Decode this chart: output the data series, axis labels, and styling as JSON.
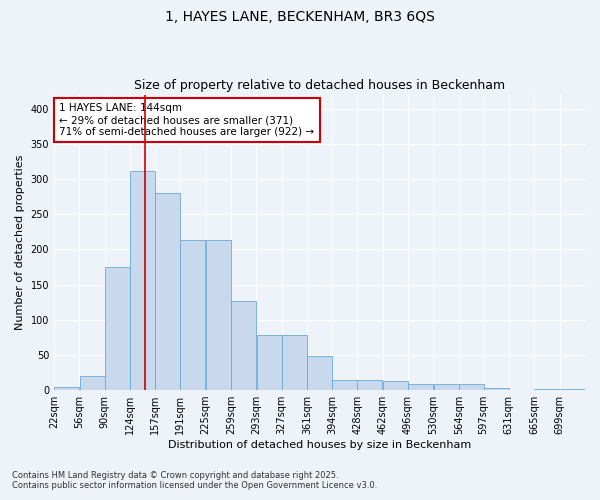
{
  "title": "1, HAYES LANE, BECKENHAM, BR3 6QS",
  "subtitle": "Size of property relative to detached houses in Beckenham",
  "xlabel": "Distribution of detached houses by size in Beckenham",
  "ylabel": "Number of detached properties",
  "footnote1": "Contains HM Land Registry data © Crown copyright and database right 2025.",
  "footnote2": "Contains public sector information licensed under the Open Government Licence v3.0.",
  "annotation_line1": "1 HAYES LANE: 144sqm",
  "annotation_line2": "← 29% of detached houses are smaller (371)",
  "annotation_line3": "71% of semi-detached houses are larger (922) →",
  "bins": [
    22,
    56,
    90,
    124,
    157,
    191,
    225,
    259,
    293,
    327,
    361,
    394,
    428,
    462,
    496,
    530,
    564,
    597,
    631,
    665,
    699
  ],
  "bar_values": [
    5,
    20,
    175,
    312,
    280,
    213,
    213,
    126,
    78,
    78,
    49,
    15,
    15,
    13,
    8,
    8,
    8,
    3,
    0,
    1,
    2
  ],
  "bar_color": "#c8d9ee",
  "bar_edge_color": "#6aaad4",
  "vline_color": "#cc0000",
  "vline_x": 144,
  "ylim": [
    0,
    420
  ],
  "yticks": [
    0,
    50,
    100,
    150,
    200,
    250,
    300,
    350,
    400
  ],
  "background_color": "#eef2f9",
  "grid_color": "#ffffff",
  "title_fontsize": 10,
  "subtitle_fontsize": 9,
  "axis_label_fontsize": 8,
  "tick_fontsize": 7,
  "annotation_fontsize": 7.5
}
